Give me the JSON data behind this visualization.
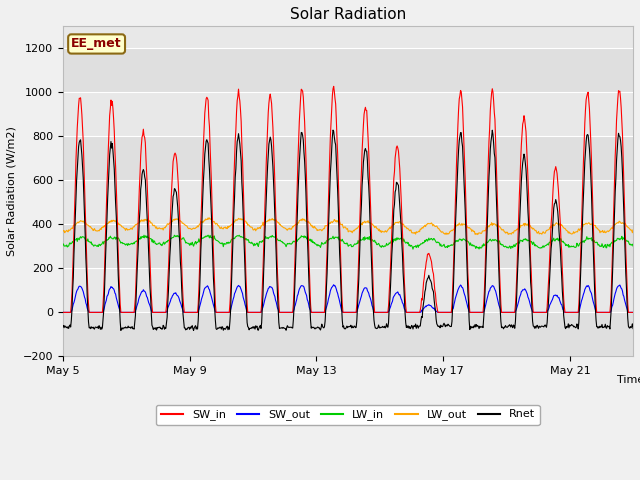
{
  "title": "Solar Radiation",
  "xlabel": "Time",
  "ylabel": "Solar Radiation (W/m2)",
  "ylim": [
    -200,
    1300
  ],
  "yticks": [
    -200,
    0,
    200,
    400,
    600,
    800,
    1000,
    1200
  ],
  "fig_facecolor": "#f0f0f0",
  "plot_bg_color": "#e8e8e8",
  "annotation_text": "EE_met",
  "annotation_bg": "#ffffcc",
  "annotation_border": "#8b6914",
  "annotation_text_color": "#8b0000",
  "colors": {
    "SW_in": "#ff0000",
    "SW_out": "#0000ff",
    "LW_in": "#00cc00",
    "LW_out": "#ffa500",
    "Rnet": "#000000"
  },
  "x_tick_labels": [
    "May 5",
    "May 9",
    "May 13",
    "May 17",
    "May 21"
  ],
  "n_days": 18,
  "pts_per_day": 48,
  "SW_in_peaks": [
    980,
    960,
    820,
    730,
    980,
    1000,
    980,
    1010,
    1020,
    935,
    760,
    265,
    1000,
    1000,
    885,
    660,
    1000,
    1010
  ],
  "LW_in_base": 320,
  "LW_out_base": 390,
  "SW_out_ratio": 0.12
}
